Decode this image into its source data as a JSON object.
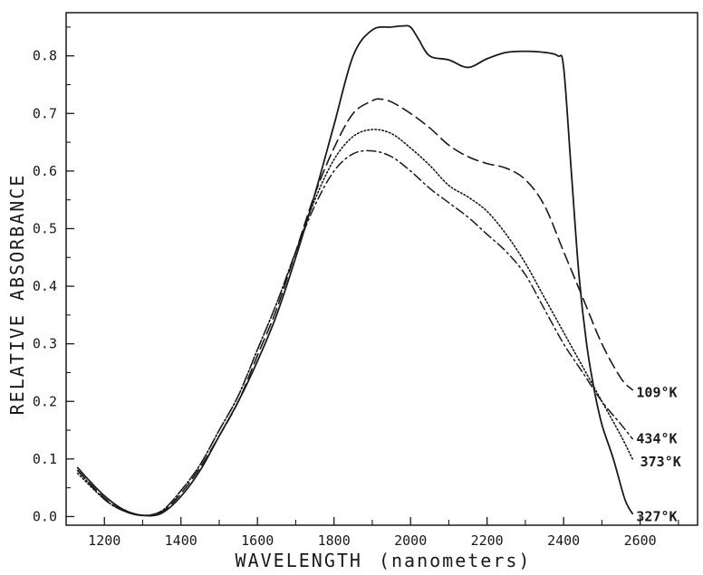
{
  "chart_data": {
    "type": "line",
    "title": "",
    "xlabel": "WAVELENGTH",
    "xlabel_unit": "(nanometers)",
    "ylabel": "RELATIVE ABSORBANCE",
    "xlim": [
      1100,
      2750
    ],
    "ylim": [
      -0.015,
      0.875
    ],
    "x_ticks": [
      1200,
      1400,
      1600,
      1800,
      2000,
      2200,
      2400,
      2600
    ],
    "x_tick_labels": [
      "1200",
      "1400",
      "1600",
      "1800",
      "2000",
      "2200",
      "2400",
      "2600"
    ],
    "y_ticks": [
      0.0,
      0.1,
      0.2,
      0.3,
      0.4,
      0.5,
      0.6,
      0.7,
      0.8
    ],
    "y_tick_labels": [
      "0.0",
      "0.1",
      "0.2",
      "0.3",
      "0.4",
      "0.5",
      "0.6",
      "0.7",
      "0.8"
    ],
    "grid": false,
    "legend": "inline labels at right end of each curve",
    "series": [
      {
        "name": "109°K",
        "style": "solid",
        "color": "#1a1a1a",
        "points": [
          [
            1130,
            0.085
          ],
          [
            1150,
            0.07
          ],
          [
            1200,
            0.036
          ],
          [
            1250,
            0.012
          ],
          [
            1300,
            0.002
          ],
          [
            1350,
            0.006
          ],
          [
            1400,
            0.035
          ],
          [
            1450,
            0.08
          ],
          [
            1500,
            0.14
          ],
          [
            1550,
            0.2
          ],
          [
            1600,
            0.27
          ],
          [
            1650,
            0.35
          ],
          [
            1700,
            0.45
          ],
          [
            1750,
            0.56
          ],
          [
            1800,
            0.68
          ],
          [
            1850,
            0.8
          ],
          [
            1900,
            0.845
          ],
          [
            1950,
            0.85
          ],
          [
            1980,
            0.852
          ],
          [
            2000,
            0.85
          ],
          [
            2020,
            0.83
          ],
          [
            2050,
            0.8
          ],
          [
            2100,
            0.793
          ],
          [
            2150,
            0.78
          ],
          [
            2200,
            0.795
          ],
          [
            2250,
            0.806
          ],
          [
            2300,
            0.808
          ],
          [
            2350,
            0.806
          ],
          [
            2385,
            0.8
          ],
          [
            2400,
            0.78
          ],
          [
            2420,
            0.6
          ],
          [
            2440,
            0.42
          ],
          [
            2460,
            0.3
          ],
          [
            2480,
            0.22
          ],
          [
            2500,
            0.16
          ],
          [
            2530,
            0.1
          ],
          [
            2560,
            0.03
          ],
          [
            2580,
            0.005
          ]
        ]
      },
      {
        "name": "327°K",
        "style": "dashed",
        "color": "#1a1a1a",
        "points": [
          [
            1130,
            0.08
          ],
          [
            1200,
            0.032
          ],
          [
            1250,
            0.01
          ],
          [
            1300,
            0.002
          ],
          [
            1350,
            0.008
          ],
          [
            1400,
            0.04
          ],
          [
            1450,
            0.085
          ],
          [
            1500,
            0.14
          ],
          [
            1550,
            0.2
          ],
          [
            1600,
            0.28
          ],
          [
            1650,
            0.36
          ],
          [
            1700,
            0.46
          ],
          [
            1750,
            0.56
          ],
          [
            1800,
            0.64
          ],
          [
            1850,
            0.7
          ],
          [
            1900,
            0.722
          ],
          [
            1920,
            0.725
          ],
          [
            1950,
            0.72
          ],
          [
            2000,
            0.7
          ],
          [
            2050,
            0.675
          ],
          [
            2100,
            0.645
          ],
          [
            2150,
            0.625
          ],
          [
            2200,
            0.613
          ],
          [
            2250,
            0.605
          ],
          [
            2300,
            0.585
          ],
          [
            2350,
            0.54
          ],
          [
            2400,
            0.46
          ],
          [
            2450,
            0.38
          ],
          [
            2500,
            0.3
          ],
          [
            2550,
            0.24
          ],
          [
            2580,
            0.22
          ]
        ]
      },
      {
        "name": "434°K",
        "style": "dashdot",
        "color": "#1a1a1a",
        "points": [
          [
            1130,
            0.08
          ],
          [
            1200,
            0.03
          ],
          [
            1250,
            0.01
          ],
          [
            1300,
            0.002
          ],
          [
            1350,
            0.01
          ],
          [
            1400,
            0.045
          ],
          [
            1450,
            0.09
          ],
          [
            1500,
            0.15
          ],
          [
            1550,
            0.21
          ],
          [
            1600,
            0.29
          ],
          [
            1650,
            0.37
          ],
          [
            1700,
            0.46
          ],
          [
            1750,
            0.54
          ],
          [
            1800,
            0.6
          ],
          [
            1850,
            0.63
          ],
          [
            1900,
            0.635
          ],
          [
            1950,
            0.625
          ],
          [
            2000,
            0.6
          ],
          [
            2050,
            0.57
          ],
          [
            2100,
            0.545
          ],
          [
            2150,
            0.52
          ],
          [
            2200,
            0.49
          ],
          [
            2250,
            0.46
          ],
          [
            2300,
            0.42
          ],
          [
            2350,
            0.36
          ],
          [
            2400,
            0.3
          ],
          [
            2450,
            0.25
          ],
          [
            2500,
            0.2
          ],
          [
            2550,
            0.16
          ],
          [
            2580,
            0.135
          ]
        ]
      },
      {
        "name": "373°K",
        "style": "dotted",
        "color": "#1a1a1a",
        "points": [
          [
            1130,
            0.075
          ],
          [
            1200,
            0.03
          ],
          [
            1250,
            0.01
          ],
          [
            1300,
            0.002
          ],
          [
            1350,
            0.01
          ],
          [
            1400,
            0.045
          ],
          [
            1450,
            0.09
          ],
          [
            1500,
            0.15
          ],
          [
            1550,
            0.21
          ],
          [
            1600,
            0.29
          ],
          [
            1650,
            0.37
          ],
          [
            1700,
            0.46
          ],
          [
            1750,
            0.55
          ],
          [
            1800,
            0.62
          ],
          [
            1850,
            0.66
          ],
          [
            1900,
            0.672
          ],
          [
            1950,
            0.665
          ],
          [
            2000,
            0.64
          ],
          [
            2050,
            0.61
          ],
          [
            2100,
            0.575
          ],
          [
            2150,
            0.555
          ],
          [
            2200,
            0.53
          ],
          [
            2250,
            0.49
          ],
          [
            2300,
            0.44
          ],
          [
            2350,
            0.38
          ],
          [
            2400,
            0.32
          ],
          [
            2450,
            0.26
          ],
          [
            2500,
            0.2
          ],
          [
            2550,
            0.14
          ],
          [
            2580,
            0.1
          ]
        ]
      }
    ],
    "label_positions_data": [
      [
        2590,
        0.215
      ],
      [
        2590,
        0.0
      ],
      [
        2590,
        0.135
      ],
      [
        2600,
        0.095
      ]
    ]
  }
}
